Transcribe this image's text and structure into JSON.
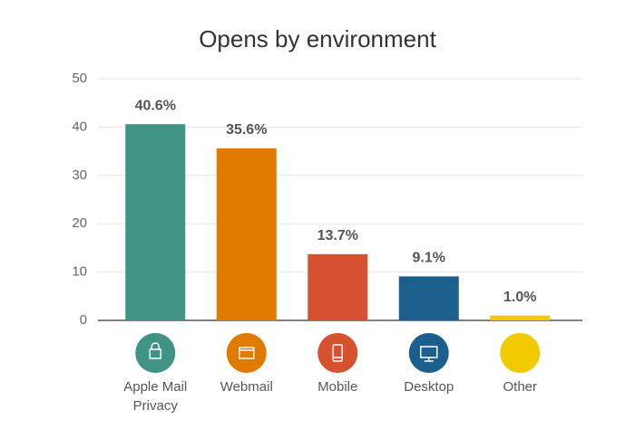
{
  "chart_data": {
    "type": "bar",
    "title": "Opens by environment",
    "categories": [
      "Apple Mail Privacy",
      "Webmail",
      "Mobile",
      "Desktop",
      "Other"
    ],
    "values": [
      40.6,
      35.6,
      13.7,
      9.1,
      1.0
    ],
    "value_labels": [
      "40.6%",
      "35.6%",
      "13.7%",
      "9.1%",
      "1.0%"
    ],
    "colors": [
      "#3f9486",
      "#e07b00",
      "#d6512f",
      "#1c5f8c",
      "#f2c900"
    ],
    "ylim": [
      0,
      50
    ],
    "yticks": [
      0,
      10,
      20,
      30,
      40,
      50
    ],
    "grid": true
  }
}
